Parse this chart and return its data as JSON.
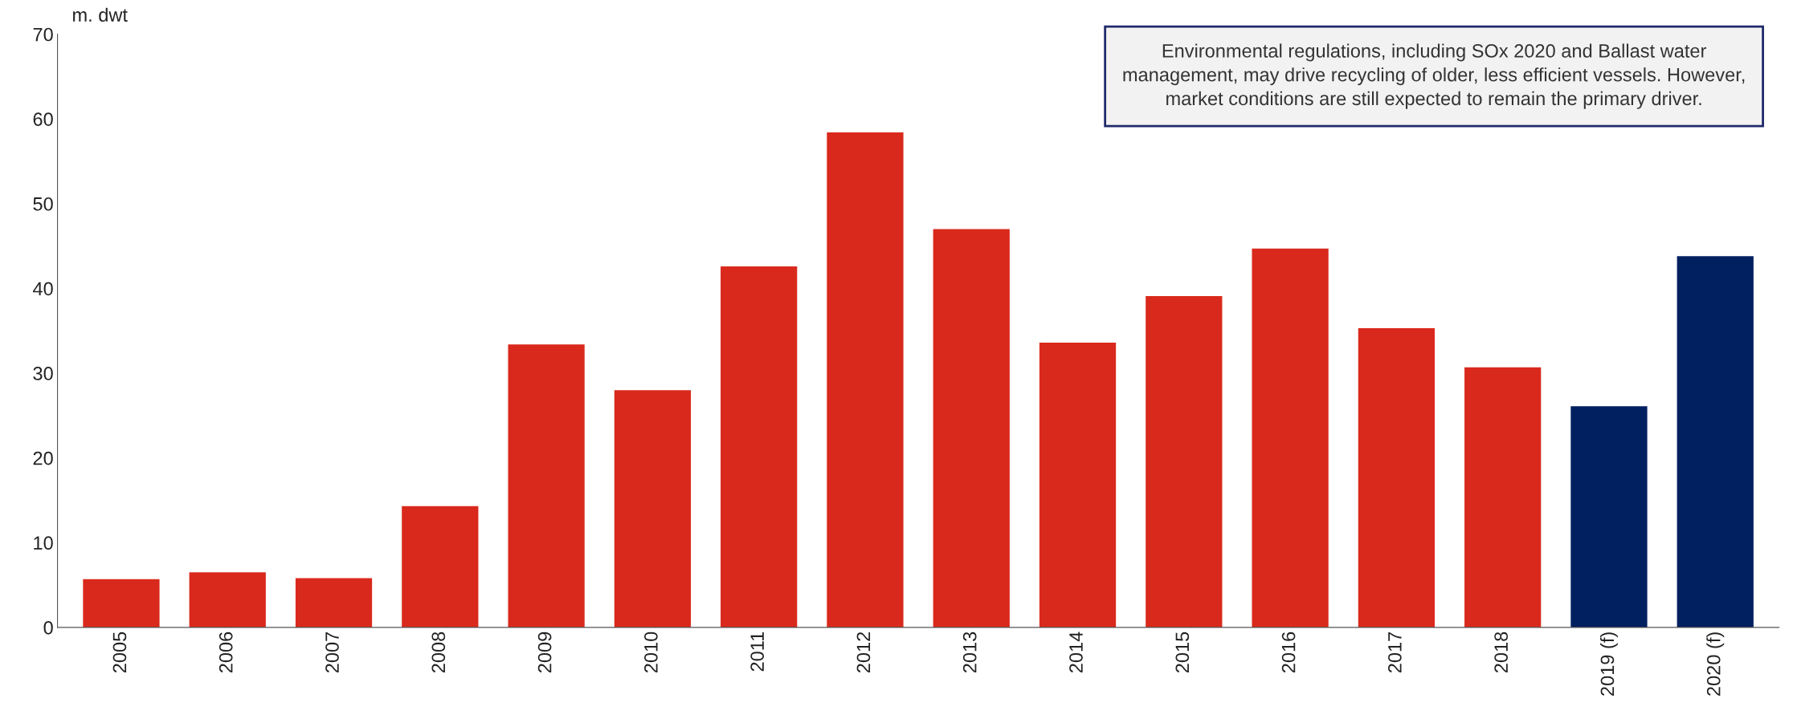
{
  "chart_data": {
    "type": "bar",
    "ylabel": "m. dwt",
    "categories": [
      "2005",
      "2006",
      "2007",
      "2008",
      "2009",
      "2010",
      "2011",
      "2012",
      "2013",
      "2014",
      "2015",
      "2016",
      "2017",
      "2018",
      "2019 (f)",
      "2020 (f)"
    ],
    "values": [
      5.7,
      6.5,
      5.8,
      14.3,
      33.4,
      28.0,
      42.6,
      58.4,
      47.0,
      33.6,
      39.1,
      44.7,
      35.3,
      30.7,
      26.1,
      43.8
    ],
    "colors": [
      "#d9291c",
      "#d9291c",
      "#d9291c",
      "#d9291c",
      "#d9291c",
      "#d9291c",
      "#d9291c",
      "#d9291c",
      "#d9291c",
      "#d9291c",
      "#d9291c",
      "#d9291c",
      "#d9291c",
      "#d9291c",
      "#002060",
      "#002060"
    ],
    "ylim": [
      0,
      70
    ],
    "yticks": [
      0,
      10,
      20,
      30,
      40,
      50,
      60,
      70
    ],
    "grid": false,
    "annotations": [
      "Environmental regulations, including SOx 2020 and Ballast water management, may drive recycling of older, less efficient vessels. However, market conditions are still expected to remain the primary driver."
    ]
  }
}
